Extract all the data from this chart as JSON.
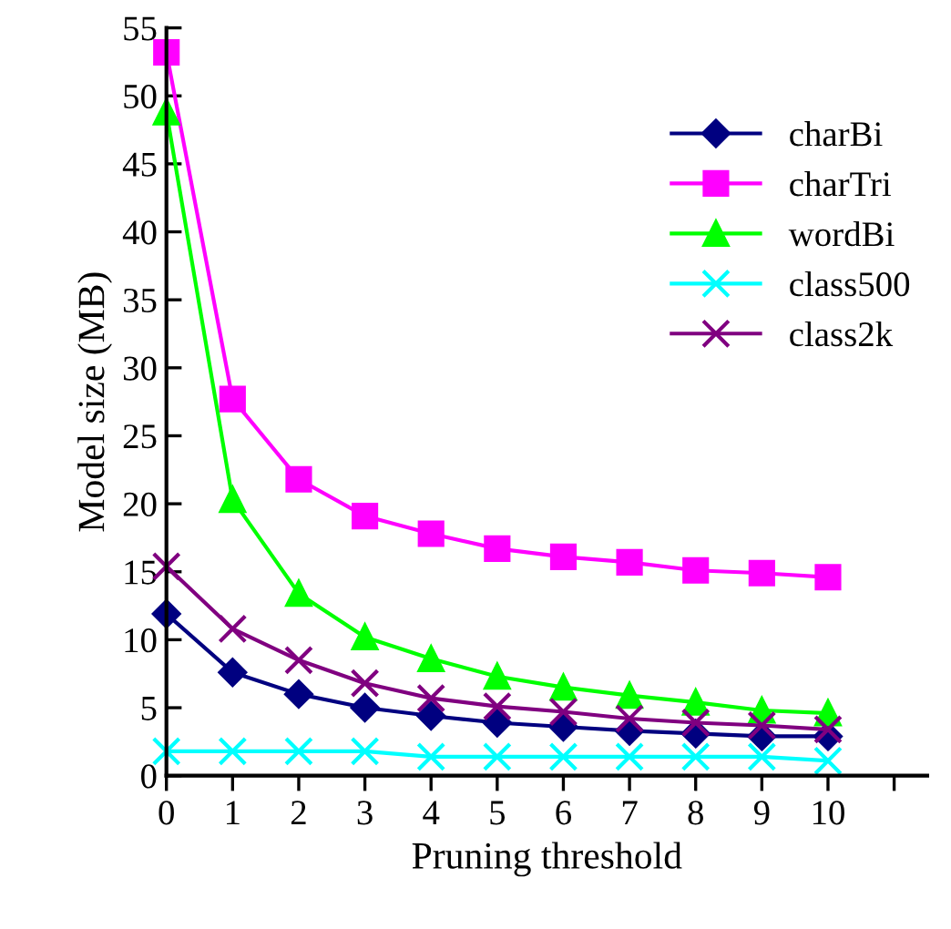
{
  "chart_data": {
    "type": "line",
    "xlabel": "Pruning threshold",
    "ylabel": "Model size (MB)",
    "x": [
      0,
      1,
      2,
      3,
      4,
      5,
      6,
      7,
      8,
      9,
      10
    ],
    "xlim": [
      0,
      11.5
    ],
    "xticks": [
      0,
      1,
      2,
      3,
      4,
      5,
      6,
      7,
      8,
      9,
      10,
      {
        "value": 11,
        "label": null
      }
    ],
    "ylim": [
      0,
      55
    ],
    "yticks": [
      0,
      5,
      10,
      15,
      20,
      25,
      30,
      35,
      40,
      45,
      50,
      55
    ],
    "grid": false,
    "legend": "right",
    "series": [
      {
        "name": "charBi",
        "color": "#000080",
        "marker": "diamond",
        "values": [
          11.9,
          7.6,
          6.0,
          5.0,
          4.4,
          3.9,
          3.6,
          3.3,
          3.1,
          2.9,
          2.9
        ]
      },
      {
        "name": "charTri",
        "color": "#ff00ff",
        "marker": "square",
        "values": [
          53.2,
          27.7,
          21.8,
          19.1,
          17.8,
          16.7,
          16.1,
          15.7,
          15.1,
          14.9,
          14.6
        ]
      },
      {
        "name": "wordBi",
        "color": "#00ff00",
        "marker": "triangle",
        "values": [
          48.8,
          20.3,
          13.4,
          10.2,
          8.6,
          7.3,
          6.5,
          5.9,
          5.4,
          4.8,
          4.6
        ]
      },
      {
        "name": "class500",
        "color": "#00ffff",
        "marker": "cross",
        "values": [
          1.8,
          1.8,
          1.8,
          1.8,
          1.4,
          1.4,
          1.4,
          1.4,
          1.4,
          1.4,
          1.1
        ]
      },
      {
        "name": "class2k",
        "color": "#800080",
        "marker": "cross",
        "values": [
          15.4,
          10.8,
          8.5,
          6.8,
          5.7,
          5.1,
          4.7,
          4.2,
          3.9,
          3.7,
          3.4
        ]
      }
    ]
  }
}
